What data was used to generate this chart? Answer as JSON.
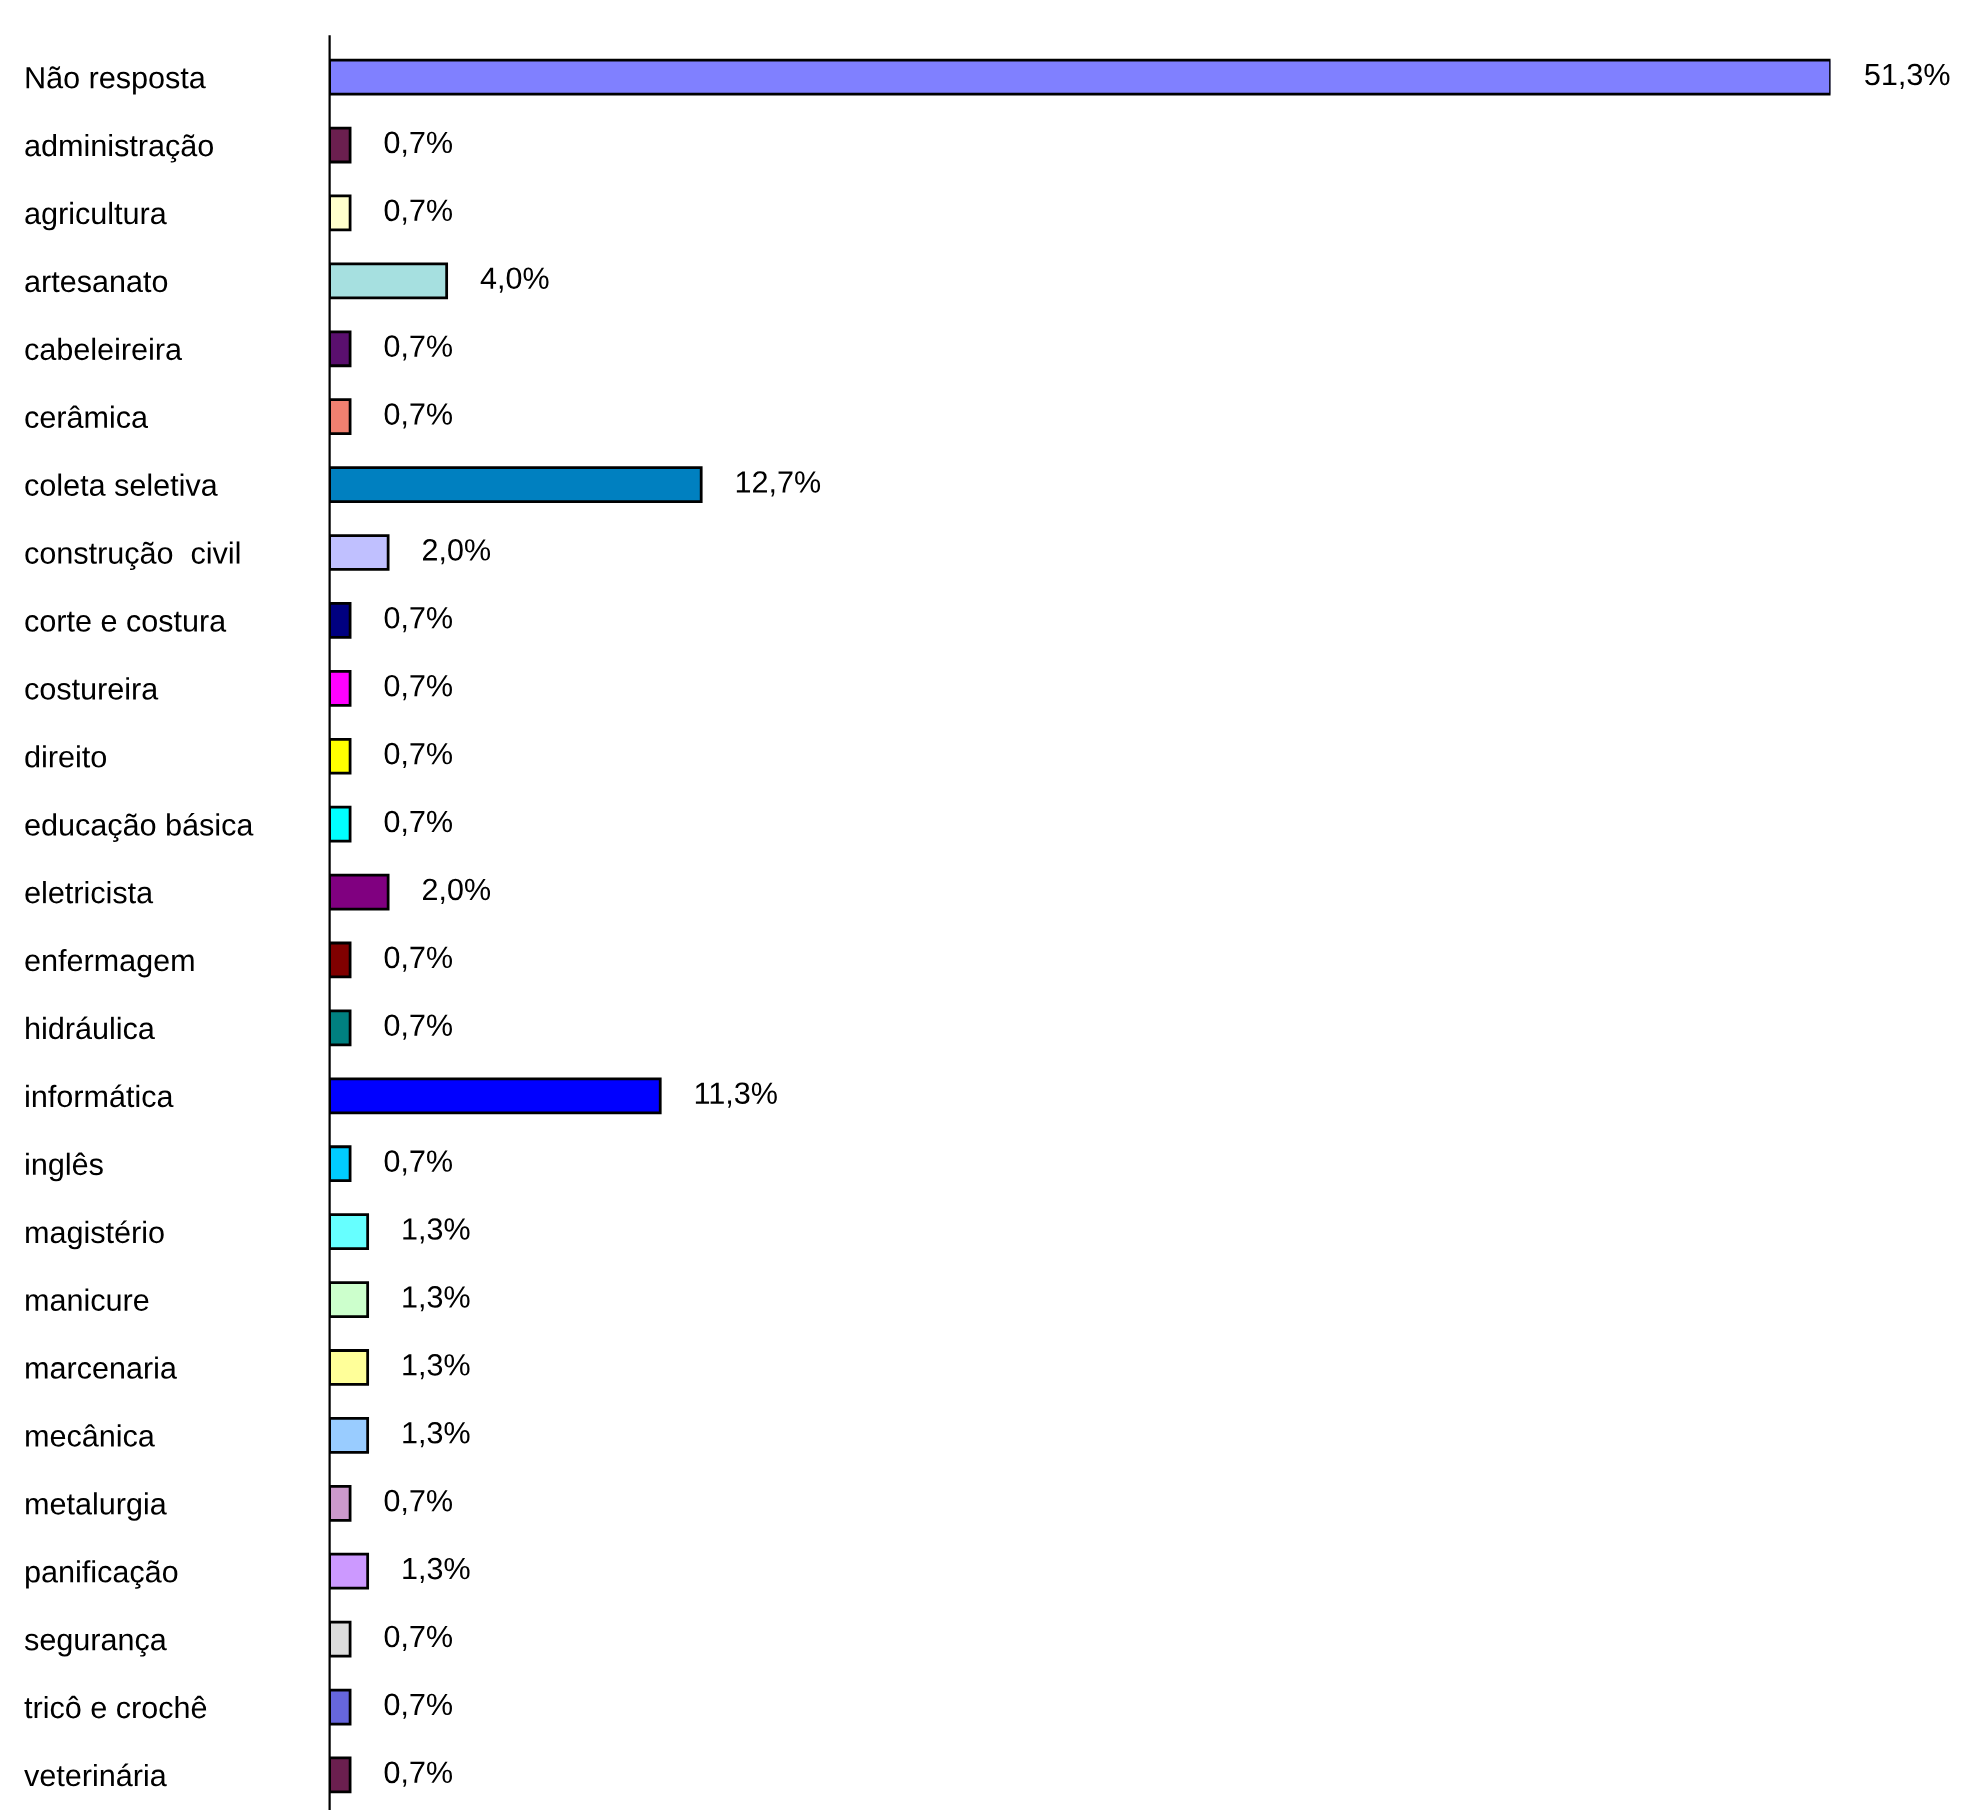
{
  "chart_data": {
    "type": "bar",
    "orientation": "horizontal",
    "categories": [
      "Não resposta",
      "administração",
      "agricultura",
      "artesanato",
      "cabeleireira",
      "cerâmica",
      "coleta seletiva",
      "construção  civil",
      "corte e costura",
      "costureira",
      "direito",
      "educação básica",
      "eletricista",
      "enfermagem",
      "hidráulica",
      "informática",
      "inglês",
      "magistério",
      "manicure",
      "marcenaria",
      "mecânica",
      "metalurgia",
      "panificação",
      "segurança",
      "tricô e crochê",
      "veterinária"
    ],
    "values": [
      51.3,
      0.7,
      0.7,
      4.0,
      0.7,
      0.7,
      12.7,
      2.0,
      0.7,
      0.7,
      0.7,
      0.7,
      2.0,
      0.7,
      0.7,
      11.3,
      0.7,
      1.3,
      1.3,
      1.3,
      1.3,
      0.7,
      1.3,
      0.7,
      0.7,
      0.7
    ],
    "colors": [
      "#8080ff",
      "#6b1f4f",
      "#ffffcc",
      "#a6e0e0",
      "#5a0f6e",
      "#f08070",
      "#0080c0",
      "#c0c0ff",
      "#000080",
      "#ff00ff",
      "#ffff00",
      "#00ffff",
      "#800080",
      "#800000",
      "#008080",
      "#0000ff",
      "#00ccff",
      "#66ffff",
      "#ccffcc",
      "#ffff99",
      "#99ccff",
      "#cc99cc",
      "#cc99ff",
      "#dddddd",
      "#6666dd",
      "#6b1f4f"
    ],
    "value_labels": [
      "51,3%",
      "0,7%",
      "0,7%",
      "4,0%",
      "0,7%",
      "0,7%",
      "12,7%",
      "2,0%",
      "0,7%",
      "0,7%",
      "0,7%",
      "0,7%",
      "2,0%",
      "0,7%",
      "0,7%",
      "11,3%",
      "0,7%",
      "1,3%",
      "1,3%",
      "1,3%",
      "1,3%",
      "0,7%",
      "1,3%",
      "0,7%",
      "0,7%",
      "0,7%"
    ],
    "grid": false,
    "legend": false
  }
}
